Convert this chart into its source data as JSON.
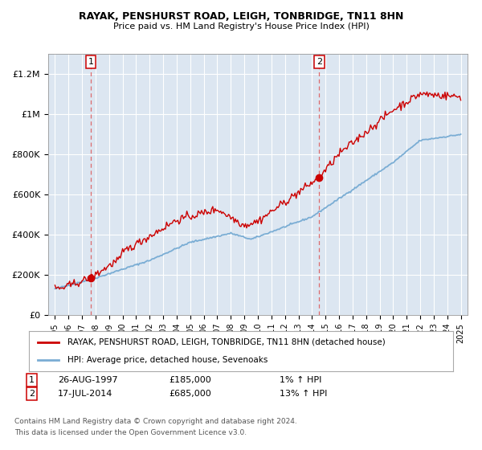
{
  "title1": "RAYAK, PENSHURST ROAD, LEIGH, TONBRIDGE, TN11 8HN",
  "title2": "Price paid vs. HM Land Registry's House Price Index (HPI)",
  "ylim": [
    0,
    1300000
  ],
  "yticks": [
    0,
    200000,
    400000,
    600000,
    800000,
    1000000,
    1200000
  ],
  "ytick_labels": [
    "£0",
    "£200K",
    "£400K",
    "£600K",
    "£800K",
    "£1M",
    "£1.2M"
  ],
  "background_color": "#dce6f1",
  "grid_color": "#ffffff",
  "sale1_date": 1997.65,
  "sale1_price": 185000,
  "sale1_label": "1",
  "sale2_date": 2014.54,
  "sale2_price": 685000,
  "sale2_label": "2",
  "line_color_property": "#cc0000",
  "line_color_hpi": "#7aadd4",
  "legend_label1": "RAYAK, PENSHURST ROAD, LEIGH, TONBRIDGE, TN11 8HN (detached house)",
  "legend_label2": "HPI: Average price, detached house, Sevenoaks",
  "annotation1_date": "26-AUG-1997",
  "annotation1_price": "£185,000",
  "annotation1_hpi": "1% ↑ HPI",
  "annotation2_date": "17-JUL-2014",
  "annotation2_price": "£685,000",
  "annotation2_hpi": "13% ↑ HPI",
  "footer1": "Contains HM Land Registry data © Crown copyright and database right 2024.",
  "footer2": "This data is licensed under the Open Government Licence v3.0.",
  "fig_bg": "#ffffff"
}
